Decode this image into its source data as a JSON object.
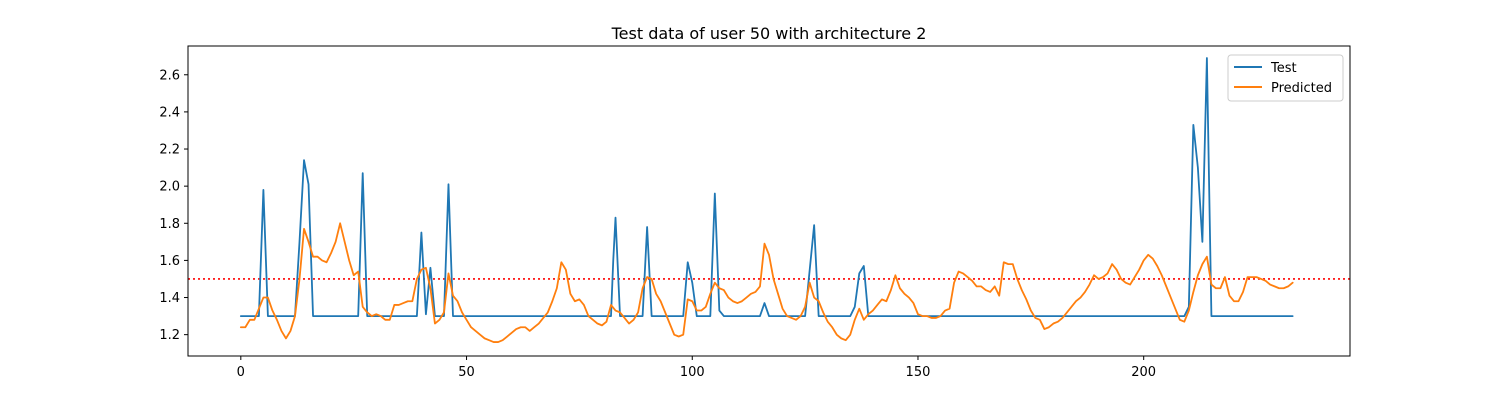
{
  "chart_data": {
    "type": "line",
    "title": "Test data of user 50 with architecture 2",
    "xlabel": "",
    "ylabel": "",
    "xlim": [
      -11.7,
      245.7
    ],
    "ylim": [
      1.085,
      2.755
    ],
    "x_ticks": [
      0,
      50,
      100,
      150,
      200
    ],
    "y_ticks": [
      1.2,
      1.4,
      1.6,
      1.8,
      2.0,
      2.2,
      2.4,
      2.6
    ],
    "x_tick_labels": [
      "0",
      "50",
      "100",
      "150",
      "200"
    ],
    "y_tick_labels": [
      "1.2",
      "1.4",
      "1.6",
      "1.8",
      "2.0",
      "2.2",
      "2.4",
      "2.6"
    ],
    "grid": false,
    "legend_position": "top-right",
    "threshold": {
      "y": 1.5,
      "color": "#ff0000",
      "style": "dotted"
    },
    "series": [
      {
        "name": "Test",
        "color": "#1f77b4",
        "points": [
          [
            0,
            1.3
          ],
          [
            4,
            1.3
          ],
          [
            5,
            1.98
          ],
          [
            6,
            1.3
          ],
          [
            12,
            1.3
          ],
          [
            13,
            1.7
          ],
          [
            14,
            2.14
          ],
          [
            15,
            2.01
          ],
          [
            16,
            1.3
          ],
          [
            26,
            1.3
          ],
          [
            27,
            2.07
          ],
          [
            28,
            1.3
          ],
          [
            39,
            1.3
          ],
          [
            40,
            1.75
          ],
          [
            41,
            1.31
          ],
          [
            42,
            1.56
          ],
          [
            43,
            1.3
          ],
          [
            45,
            1.3
          ],
          [
            46,
            2.01
          ],
          [
            47,
            1.3
          ],
          [
            82,
            1.3
          ],
          [
            82.5,
            1.6
          ],
          [
            83,
            1.83
          ],
          [
            84,
            1.3
          ],
          [
            89,
            1.3
          ],
          [
            90,
            1.78
          ],
          [
            91,
            1.3
          ],
          [
            98,
            1.3
          ],
          [
            99,
            1.59
          ],
          [
            100,
            1.48
          ],
          [
            101,
            1.3
          ],
          [
            104,
            1.3
          ],
          [
            105,
            1.96
          ],
          [
            106,
            1.33
          ],
          [
            107,
            1.3
          ],
          [
            115,
            1.3
          ],
          [
            116,
            1.37
          ],
          [
            117,
            1.3
          ],
          [
            125,
            1.3
          ],
          [
            127,
            1.79
          ],
          [
            128,
            1.3
          ],
          [
            135,
            1.3
          ],
          [
            136,
            1.35
          ],
          [
            137,
            1.53
          ],
          [
            138,
            1.57
          ],
          [
            139,
            1.3
          ],
          [
            209,
            1.3
          ],
          [
            210,
            1.35
          ],
          [
            211,
            2.33
          ],
          [
            212,
            2.1
          ],
          [
            213,
            1.7
          ],
          [
            214,
            2.69
          ],
          [
            215,
            1.3
          ],
          [
            233,
            1.3
          ]
        ]
      },
      {
        "name": "Predicted",
        "color": "#ff7f0e",
        "points": [
          [
            0,
            1.24
          ],
          [
            1,
            1.24
          ],
          [
            2,
            1.28
          ],
          [
            3,
            1.28
          ],
          [
            4,
            1.34
          ],
          [
            5,
            1.4
          ],
          [
            6,
            1.4
          ],
          [
            7,
            1.33
          ],
          [
            8,
            1.28
          ],
          [
            9,
            1.22
          ],
          [
            10,
            1.18
          ],
          [
            11,
            1.22
          ],
          [
            12,
            1.3
          ],
          [
            13,
            1.5
          ],
          [
            14,
            1.77
          ],
          [
            15,
            1.7
          ],
          [
            16,
            1.62
          ],
          [
            17,
            1.62
          ],
          [
            18,
            1.6
          ],
          [
            19,
            1.59
          ],
          [
            20,
            1.64
          ],
          [
            21,
            1.7
          ],
          [
            22,
            1.8
          ],
          [
            23,
            1.7
          ],
          [
            24,
            1.6
          ],
          [
            25,
            1.52
          ],
          [
            26,
            1.54
          ],
          [
            27,
            1.35
          ],
          [
            28,
            1.32
          ],
          [
            29,
            1.3
          ],
          [
            30,
            1.31
          ],
          [
            31,
            1.3
          ],
          [
            32,
            1.28
          ],
          [
            33,
            1.28
          ],
          [
            34,
            1.36
          ],
          [
            35,
            1.36
          ],
          [
            36,
            1.37
          ],
          [
            37,
            1.38
          ],
          [
            38,
            1.38
          ],
          [
            39,
            1.5
          ],
          [
            40,
            1.55
          ],
          [
            41,
            1.56
          ],
          [
            42,
            1.45
          ],
          [
            43,
            1.26
          ],
          [
            44,
            1.28
          ],
          [
            45,
            1.32
          ],
          [
            46,
            1.53
          ],
          [
            47,
            1.41
          ],
          [
            48,
            1.38
          ],
          [
            49,
            1.32
          ],
          [
            50,
            1.28
          ],
          [
            51,
            1.24
          ],
          [
            52,
            1.22
          ],
          [
            53,
            1.2
          ],
          [
            54,
            1.18
          ],
          [
            55,
            1.17
          ],
          [
            56,
            1.16
          ],
          [
            57,
            1.16
          ],
          [
            58,
            1.17
          ],
          [
            59,
            1.19
          ],
          [
            60,
            1.21
          ],
          [
            61,
            1.23
          ],
          [
            62,
            1.24
          ],
          [
            63,
            1.24
          ],
          [
            64,
            1.22
          ],
          [
            65,
            1.24
          ],
          [
            66,
            1.26
          ],
          [
            67,
            1.29
          ],
          [
            68,
            1.32
          ],
          [
            69,
            1.38
          ],
          [
            70,
            1.45
          ],
          [
            71,
            1.59
          ],
          [
            72,
            1.55
          ],
          [
            73,
            1.42
          ],
          [
            74,
            1.38
          ],
          [
            75,
            1.39
          ],
          [
            76,
            1.36
          ],
          [
            77,
            1.3
          ],
          [
            78,
            1.28
          ],
          [
            79,
            1.26
          ],
          [
            80,
            1.25
          ],
          [
            81,
            1.27
          ],
          [
            82,
            1.36
          ],
          [
            83,
            1.33
          ],
          [
            84,
            1.32
          ],
          [
            85,
            1.29
          ],
          [
            86,
            1.26
          ],
          [
            87,
            1.28
          ],
          [
            88,
            1.32
          ],
          [
            89,
            1.45
          ],
          [
            90,
            1.51
          ],
          [
            91,
            1.5
          ],
          [
            92,
            1.42
          ],
          [
            93,
            1.38
          ],
          [
            94,
            1.32
          ],
          [
            95,
            1.26
          ],
          [
            96,
            1.2
          ],
          [
            97,
            1.19
          ],
          [
            98,
            1.2
          ],
          [
            99,
            1.39
          ],
          [
            100,
            1.38
          ],
          [
            101,
            1.33
          ],
          [
            102,
            1.33
          ],
          [
            103,
            1.35
          ],
          [
            104,
            1.42
          ],
          [
            105,
            1.48
          ],
          [
            106,
            1.45
          ],
          [
            107,
            1.44
          ],
          [
            108,
            1.4
          ],
          [
            109,
            1.38
          ],
          [
            110,
            1.37
          ],
          [
            111,
            1.38
          ],
          [
            112,
            1.4
          ],
          [
            113,
            1.42
          ],
          [
            114,
            1.43
          ],
          [
            115,
            1.46
          ],
          [
            116,
            1.69
          ],
          [
            117,
            1.63
          ],
          [
            118,
            1.5
          ],
          [
            119,
            1.42
          ],
          [
            120,
            1.34
          ],
          [
            121,
            1.3
          ],
          [
            122,
            1.29
          ],
          [
            123,
            1.28
          ],
          [
            124,
            1.3
          ],
          [
            125,
            1.35
          ],
          [
            126,
            1.48
          ],
          [
            127,
            1.4
          ],
          [
            128,
            1.38
          ],
          [
            129,
            1.32
          ],
          [
            130,
            1.27
          ],
          [
            131,
            1.24
          ],
          [
            132,
            1.2
          ],
          [
            133,
            1.18
          ],
          [
            134,
            1.17
          ],
          [
            135,
            1.2
          ],
          [
            136,
            1.28
          ],
          [
            137,
            1.34
          ],
          [
            138,
            1.28
          ],
          [
            139,
            1.31
          ],
          [
            140,
            1.33
          ],
          [
            141,
            1.36
          ],
          [
            142,
            1.39
          ],
          [
            143,
            1.38
          ],
          [
            144,
            1.44
          ],
          [
            145,
            1.52
          ],
          [
            146,
            1.45
          ],
          [
            147,
            1.42
          ],
          [
            148,
            1.4
          ],
          [
            149,
            1.37
          ],
          [
            150,
            1.31
          ],
          [
            151,
            1.3
          ],
          [
            152,
            1.3
          ],
          [
            153,
            1.29
          ],
          [
            154,
            1.29
          ],
          [
            155,
            1.3
          ],
          [
            156,
            1.33
          ],
          [
            157,
            1.34
          ],
          [
            158,
            1.48
          ],
          [
            159,
            1.54
          ],
          [
            160,
            1.53
          ],
          [
            161,
            1.51
          ],
          [
            162,
            1.49
          ],
          [
            163,
            1.46
          ],
          [
            164,
            1.46
          ],
          [
            165,
            1.44
          ],
          [
            166,
            1.43
          ],
          [
            167,
            1.46
          ],
          [
            168,
            1.41
          ],
          [
            169,
            1.59
          ],
          [
            170,
            1.58
          ],
          [
            171,
            1.58
          ],
          [
            172,
            1.5
          ],
          [
            173,
            1.44
          ],
          [
            174,
            1.39
          ],
          [
            175,
            1.33
          ],
          [
            176,
            1.29
          ],
          [
            177,
            1.28
          ],
          [
            178,
            1.23
          ],
          [
            179,
            1.24
          ],
          [
            180,
            1.26
          ],
          [
            181,
            1.27
          ],
          [
            182,
            1.29
          ],
          [
            183,
            1.32
          ],
          [
            184,
            1.35
          ],
          [
            185,
            1.38
          ],
          [
            186,
            1.4
          ],
          [
            187,
            1.43
          ],
          [
            188,
            1.47
          ],
          [
            189,
            1.52
          ],
          [
            190,
            1.5
          ],
          [
            191,
            1.51
          ],
          [
            192,
            1.53
          ],
          [
            193,
            1.58
          ],
          [
            194,
            1.55
          ],
          [
            195,
            1.5
          ],
          [
            196,
            1.48
          ],
          [
            197,
            1.47
          ],
          [
            198,
            1.51
          ],
          [
            199,
            1.55
          ],
          [
            200,
            1.6
          ],
          [
            201,
            1.63
          ],
          [
            202,
            1.61
          ],
          [
            203,
            1.57
          ],
          [
            204,
            1.52
          ],
          [
            205,
            1.46
          ],
          [
            206,
            1.4
          ],
          [
            207,
            1.34
          ],
          [
            208,
            1.28
          ],
          [
            209,
            1.27
          ],
          [
            210,
            1.33
          ],
          [
            211,
            1.43
          ],
          [
            212,
            1.52
          ],
          [
            213,
            1.58
          ],
          [
            214,
            1.62
          ],
          [
            215,
            1.47
          ],
          [
            216,
            1.45
          ],
          [
            217,
            1.45
          ],
          [
            218,
            1.51
          ],
          [
            219,
            1.41
          ],
          [
            220,
            1.38
          ],
          [
            221,
            1.38
          ],
          [
            222,
            1.43
          ],
          [
            223,
            1.51
          ],
          [
            224,
            1.51
          ],
          [
            225,
            1.51
          ],
          [
            226,
            1.5
          ],
          [
            227,
            1.49
          ],
          [
            228,
            1.47
          ],
          [
            229,
            1.46
          ],
          [
            230,
            1.45
          ],
          [
            231,
            1.45
          ],
          [
            232,
            1.46
          ],
          [
            233,
            1.48
          ]
        ]
      }
    ]
  }
}
